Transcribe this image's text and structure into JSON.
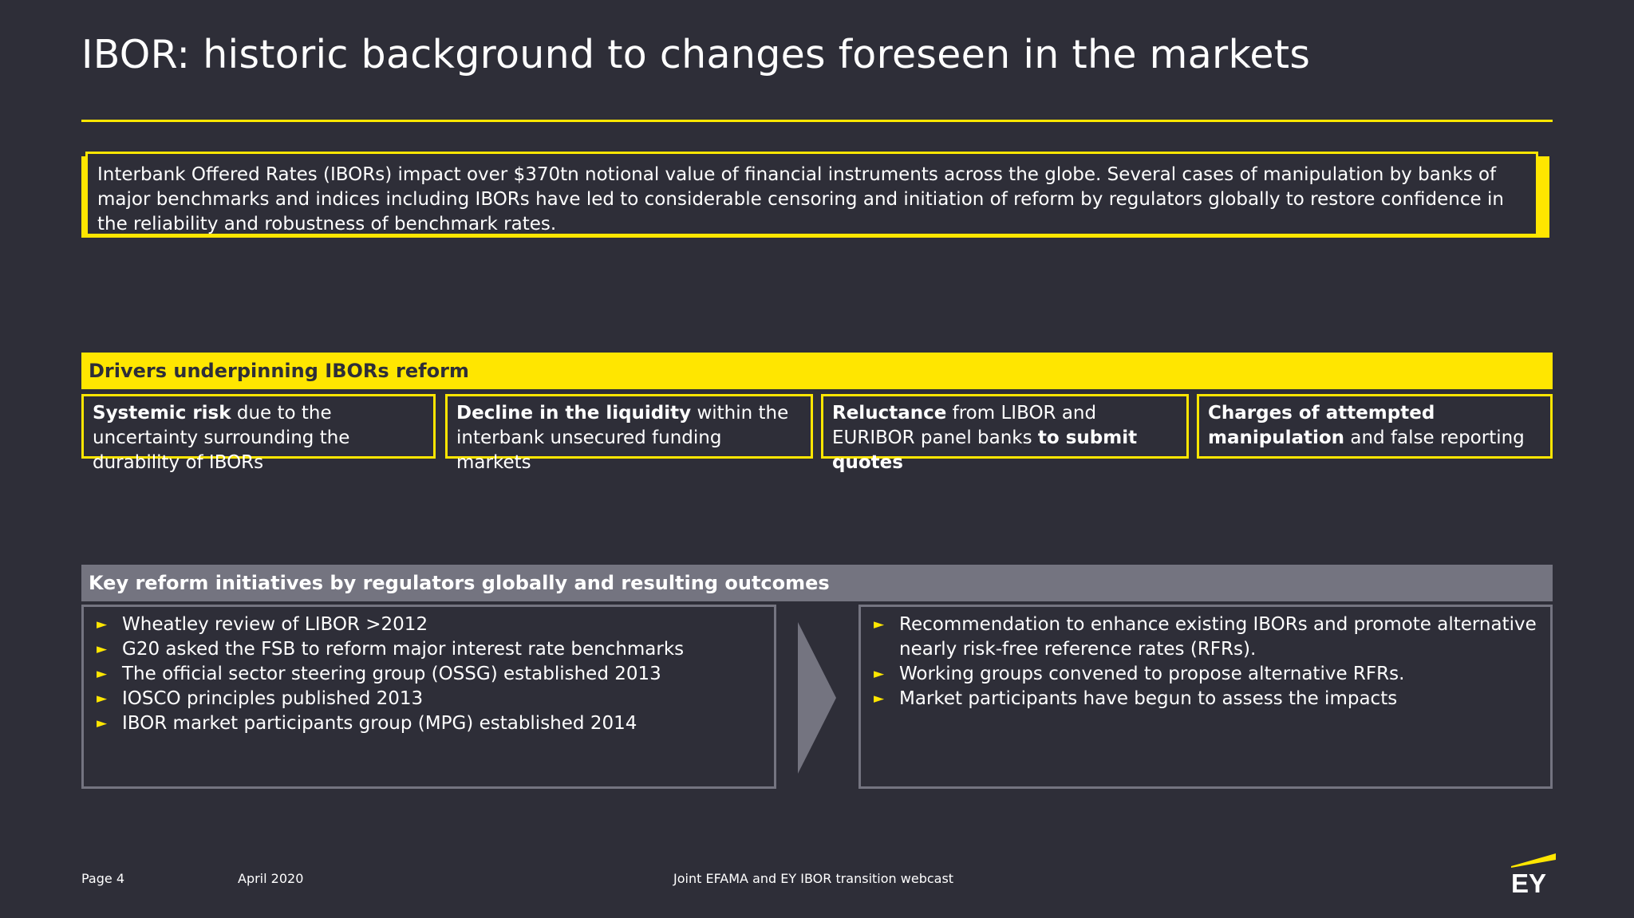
{
  "title": "IBOR: historic background to changes foreseen in the markets",
  "intro": "Interbank Offered Rates (IBORs) impact over $370tn notional value of financial instruments across the globe. Several cases of manipulation by banks of major benchmarks and indices including IBORs have led to considerable censoring and initiation of reform by regulators globally to restore confidence in the reliability and robustness of benchmark rates.",
  "drivers": {
    "header": "Drivers underpinning IBORs reform",
    "items": [
      {
        "bold": "Systemic risk",
        "text": " due to the uncertainty surrounding the durability of IBORs"
      },
      {
        "bold": "Decline in the liquidity",
        "text": " within the interbank unsecured funding markets"
      },
      {
        "bold": "Reluctance",
        "text": " from LIBOR and EURIBOR panel banks ",
        "bold2": "to submit quotes"
      },
      {
        "bold": "Charges of attempted manipulation",
        "text": " and false reporting"
      }
    ]
  },
  "reform": {
    "header": "Key reform initiatives by regulators globally and resulting outcomes",
    "initiatives": [
      "Wheatley review of LIBOR >2012",
      "G20 asked the FSB to reform major interest rate benchmarks",
      "The official sector steering group (OSSG) established 2013",
      "IOSCO principles published 2013",
      "IBOR market participants group (MPG) established 2014"
    ],
    "outcomes": [
      "Recommendation to enhance existing IBORs and promote alternative nearly risk-free reference rates (RFRs).",
      "Working groups convened to propose alternative RFRs.",
      "Market participants have begun to assess the impacts"
    ],
    "bullet": "►"
  },
  "footer": {
    "page": "Page 4",
    "date": "April 2020",
    "event": "Joint EFAMA and EY IBOR transition webcast",
    "logo": "EY"
  },
  "colors": {
    "background": "#2e2e38",
    "accent": "#ffe600",
    "grey": "#747480"
  }
}
